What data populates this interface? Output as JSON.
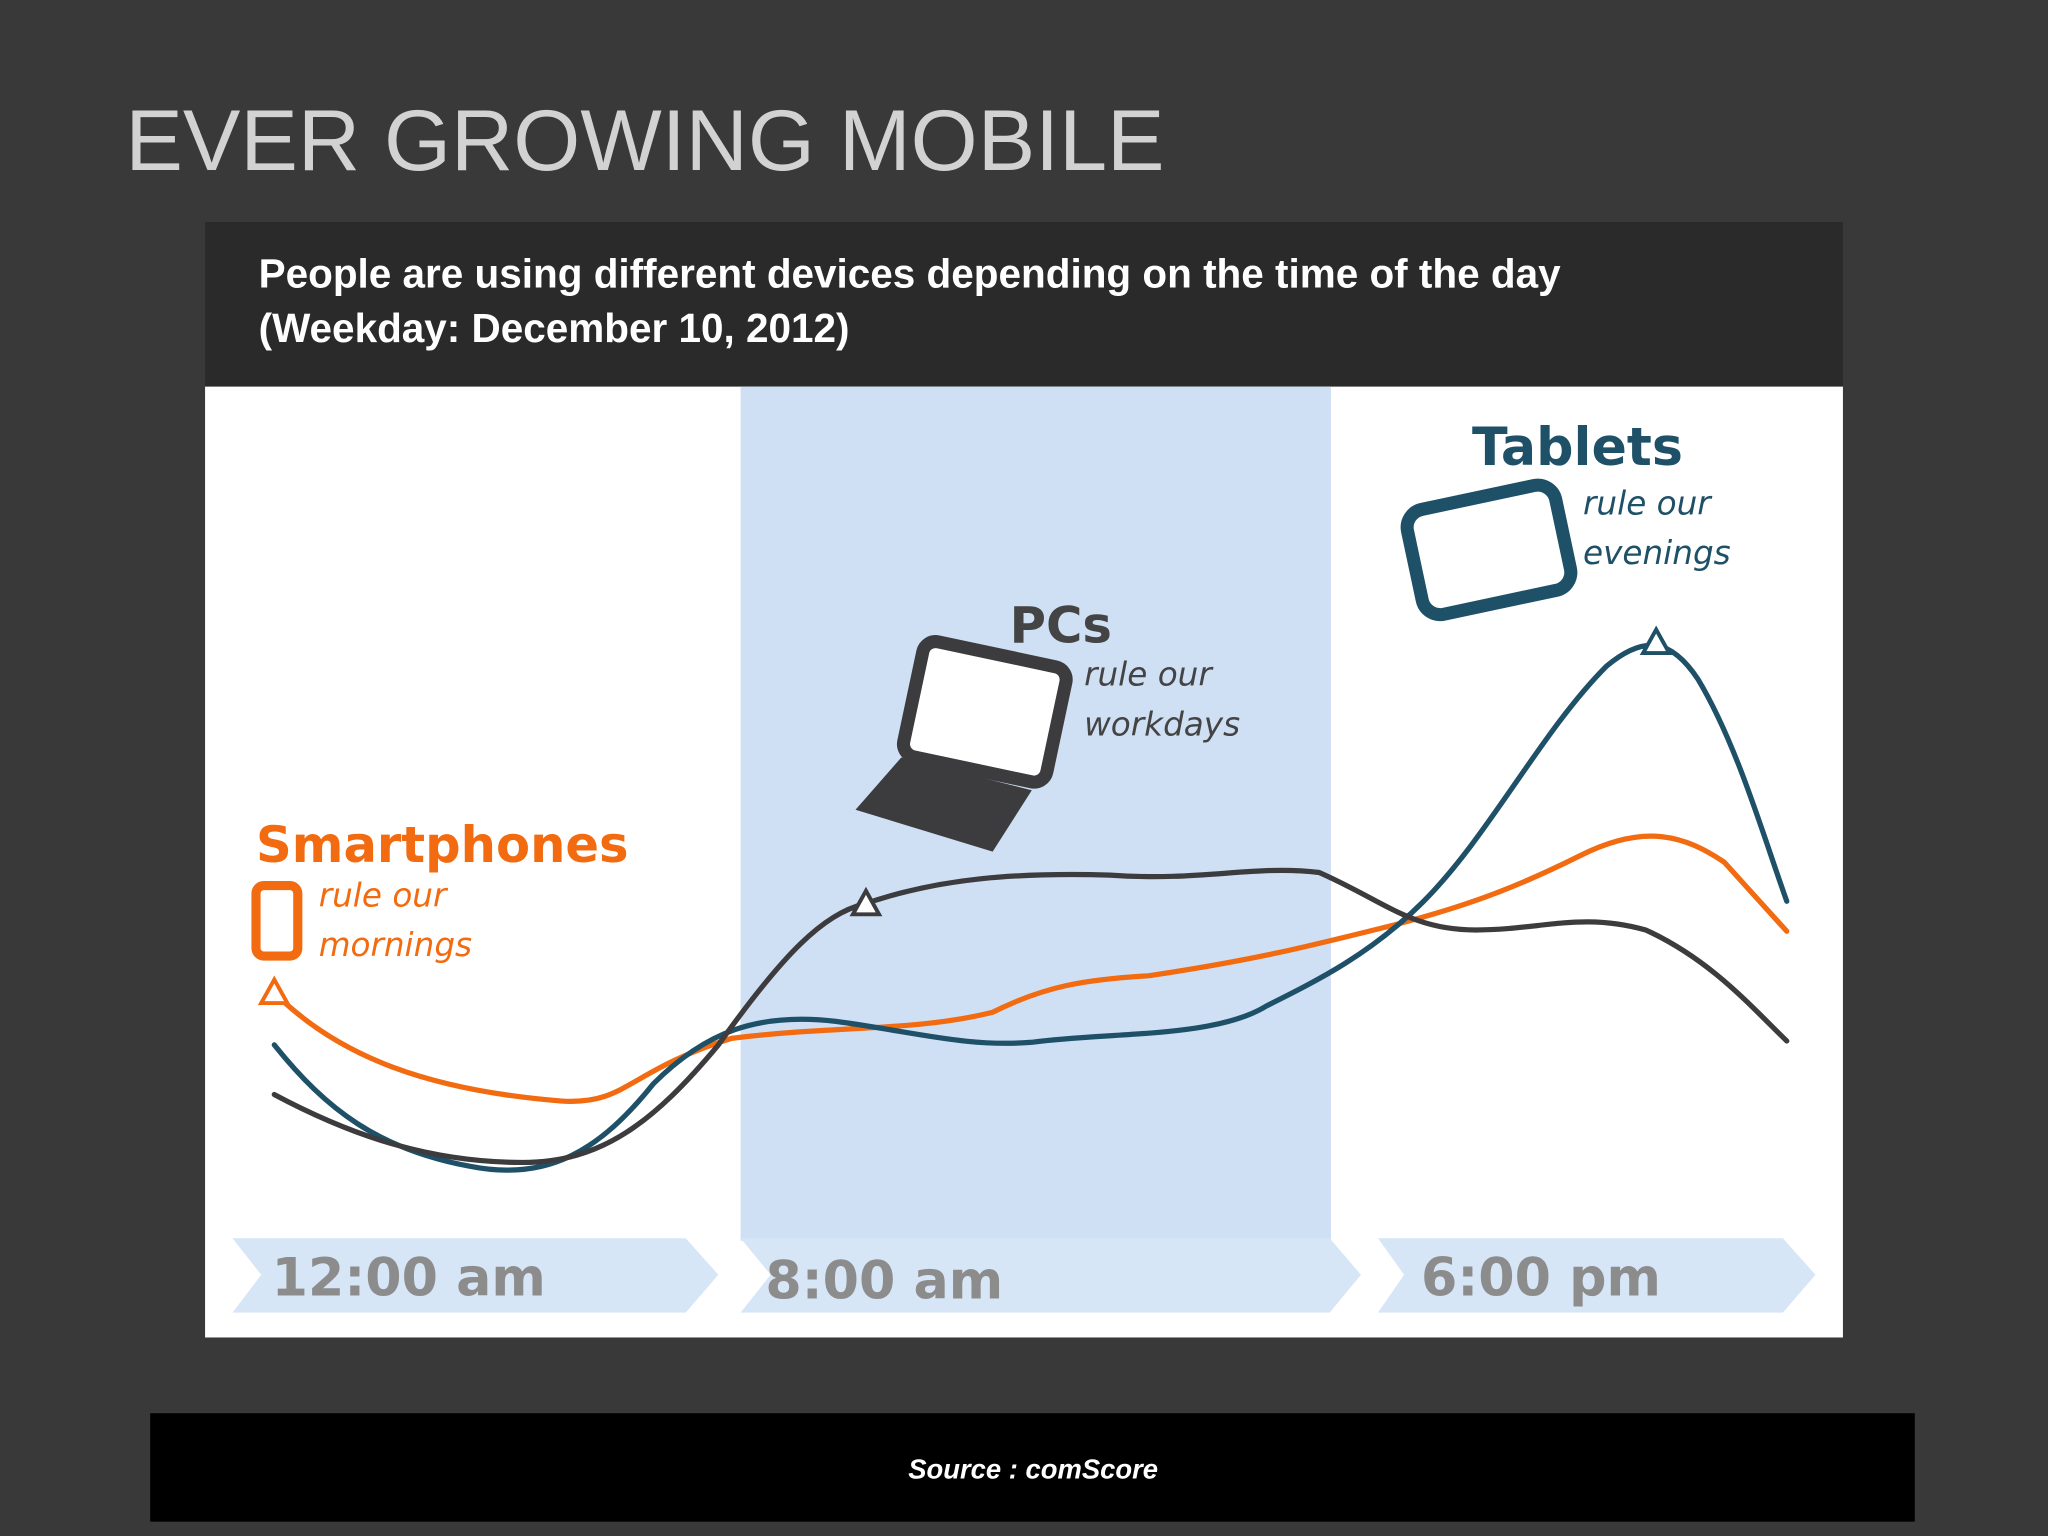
{
  "slide": {
    "title": "EVER GROWING MOBILE"
  },
  "panel": {
    "header": [
      "People are using different devices depending on the time of the day",
      "(Weekday: December 10, 2012)"
    ],
    "devices": [
      {
        "name": "Smartphones",
        "lines": [
          "rule our",
          "mornings"
        ]
      },
      {
        "name": "PCs",
        "lines": [
          "rule our",
          "workdays"
        ]
      },
      {
        "name": "Tablets",
        "lines": [
          "rule our",
          "evenings"
        ]
      }
    ],
    "times": [
      "12:00 am",
      "8:00 am",
      "6:00 pm"
    ]
  },
  "footer": {
    "source": "Source : comScore"
  }
}
